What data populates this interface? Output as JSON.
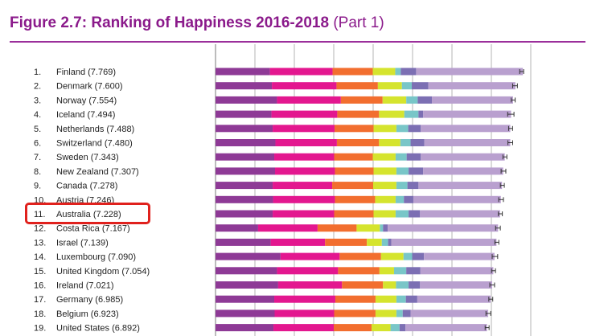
{
  "title": {
    "bold": "Figure 2.7: Ranking of Happiness 2016-2018",
    "suffix": "(Part 1)"
  },
  "colors": {
    "title": "#8b1a8b",
    "rule": "#9b2f9b",
    "highlight": "#e0211d",
    "segments": [
      "#8e3a96",
      "#e3178f",
      "#f26e2f",
      "#d5e42e",
      "#79c6c8",
      "#7c6fb3",
      "#b9a0cf"
    ]
  },
  "chart_data": {
    "type": "bar",
    "stacked": true,
    "orientation": "horizontal",
    "grid": true,
    "categories": [
      "Finland",
      "Denmark",
      "Norway",
      "Iceland",
      "Netherlands",
      "Switzerland",
      "Sweden",
      "New Zealand",
      "Canada",
      "Austria",
      "Australia",
      "Costa Rica",
      "Israel",
      "Luxembourg",
      "United Kingdom",
      "Ireland",
      "Germany",
      "Belgium",
      "United States"
    ],
    "labels": [
      "Finland (7.769)",
      "Denmark (7.600)",
      "Norway (7.554)",
      "Iceland (7.494)",
      "Netherlands (7.488)",
      "Switzerland (7.480)",
      "Sweden (7.343)",
      "New Zealand (7.307)",
      "Canada (7.278)",
      "Austria (7.246)",
      "Australia (7.228)",
      "Costa Rica (7.167)",
      "Israel (7.139)",
      "Luxembourg (7.090)",
      "United Kingdom (7.054)",
      "Ireland (7.021)",
      "Germany (6.985)",
      "Belgium (6.923)",
      "United States (6.892)"
    ],
    "ranks": [
      "1.",
      "2.",
      "3.",
      "4.",
      "5.",
      "6.",
      "7.",
      "8.",
      "9.",
      "10.",
      "11.",
      "12.",
      "13.",
      "14.",
      "15.",
      "16.",
      "17.",
      "18.",
      "19."
    ],
    "scores": [
      7.769,
      7.6,
      7.554,
      7.494,
      7.488,
      7.48,
      7.343,
      7.307,
      7.278,
      7.246,
      7.228,
      7.167,
      7.139,
      7.09,
      7.054,
      7.021,
      6.985,
      6.923,
      6.892
    ],
    "segments": [
      [
        1.38,
        1.59,
        1.02,
        0.57,
        0.14,
        0.39,
        2.71
      ],
      [
        1.43,
        1.64,
        1.05,
        0.61,
        0.25,
        0.42,
        2.21
      ],
      [
        1.56,
        1.62,
        1.06,
        0.6,
        0.29,
        0.36,
        2.06
      ],
      [
        1.42,
        1.67,
        1.06,
        0.64,
        0.36,
        0.12,
        2.23
      ],
      [
        1.45,
        1.57,
        0.99,
        0.58,
        0.3,
        0.32,
        2.27
      ],
      [
        1.52,
        1.56,
        1.07,
        0.54,
        0.26,
        0.35,
        2.18
      ],
      [
        1.49,
        1.52,
        0.98,
        0.58,
        0.28,
        0.36,
        2.13
      ],
      [
        1.51,
        1.52,
        0.98,
        0.58,
        0.31,
        0.37,
        2.03
      ],
      [
        1.45,
        1.51,
        1.04,
        0.59,
        0.28,
        0.28,
        2.12
      ],
      [
        1.46,
        1.57,
        1.02,
        0.52,
        0.21,
        0.24,
        2.22
      ],
      [
        1.45,
        1.56,
        1.0,
        0.56,
        0.33,
        0.29,
        2.03
      ],
      [
        1.08,
        1.51,
        0.99,
        0.59,
        0.08,
        0.12,
        2.8
      ],
      [
        1.4,
        1.38,
        1.06,
        0.38,
        0.16,
        0.08,
        2.67
      ],
      [
        1.65,
        1.5,
        1.05,
        0.57,
        0.22,
        0.3,
        1.79
      ],
      [
        1.56,
        1.55,
        1.05,
        0.37,
        0.31,
        0.36,
        1.85
      ],
      [
        1.59,
        1.62,
        1.04,
        0.33,
        0.32,
        0.29,
        1.83
      ],
      [
        1.49,
        1.55,
        1.02,
        0.53,
        0.24,
        0.29,
        1.86
      ],
      [
        1.5,
        1.51,
        1.05,
        0.53,
        0.16,
        0.2,
        1.97
      ],
      [
        1.47,
        1.53,
        0.96,
        0.48,
        0.23,
        0.15,
        2.07
      ]
    ],
    "ci_half": [
      0.05,
      0.06,
      0.05,
      0.08,
      0.05,
      0.06,
      0.05,
      0.06,
      0.05,
      0.06,
      0.05,
      0.06,
      0.05,
      0.07,
      0.05,
      0.06,
      0.05,
      0.06,
      0.05
    ],
    "xlim": [
      0,
      8.6
    ],
    "gridlines": [
      1,
      2,
      3,
      4,
      5,
      6,
      7,
      8
    ],
    "highlighted": "Australia"
  }
}
